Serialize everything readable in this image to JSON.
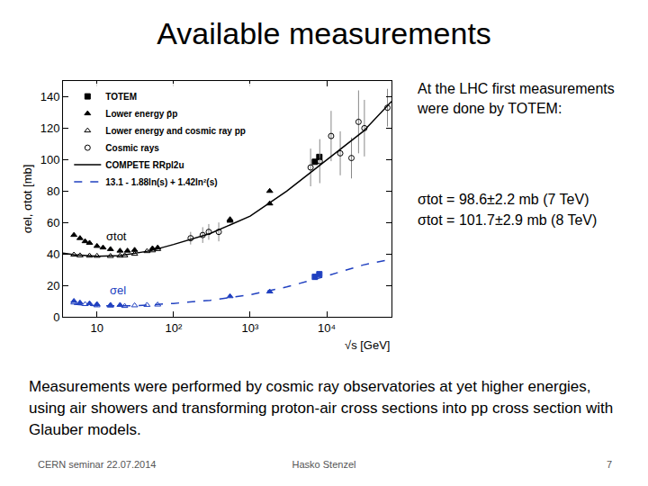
{
  "slide": {
    "title": "Available measurements",
    "side_text": "At the LHC first measurements were done by TOTEM:",
    "results": [
      "σtot = 98.6±2.2 mb (7 TeV)",
      "σtot = 101.7±2.9 mb (8 TeV)"
    ],
    "body": "Measurements were performed by cosmic ray observatories at yet higher energies, using air showers and transforming proton-air cross sections into pp cross section with Glauber models.",
    "footer": {
      "left": "CERN seminar 22.07.2014",
      "center": "Hasko Stenzel",
      "right": "7"
    }
  },
  "chart_data": {
    "type": "scatter",
    "xlabel": "√s [GeV]",
    "ylabel": "σel, σtot [mb]",
    "log": "x",
    "grid": false,
    "legend": "top-left",
    "xlim": [
      3.6,
      70000
    ],
    "xticks": [
      10,
      {
        "value": 100,
        "label": "10²"
      },
      {
        "value": 1000,
        "label": "10³"
      },
      {
        "value": 10000,
        "label": "10⁴"
      }
    ],
    "ylim": [
      0,
      150
    ],
    "yticks": [
      0,
      20,
      40,
      60,
      80,
      100,
      120,
      140
    ],
    "annotations": [
      {
        "text": "σtot",
        "x": 18,
        "y": 51,
        "color": "#000000"
      },
      {
        "text": "σel",
        "x": 19,
        "y": 17,
        "color": "#2040c0"
      }
    ],
    "series": [
      {
        "name": "TOTEM",
        "type": "scatter",
        "marker": "square",
        "color": "#000000",
        "x": [
          7000,
          8000
        ],
        "values": [
          98.6,
          101.7
        ],
        "el": {
          "color": "#2040c0",
          "x": [
            7000,
            8000
          ],
          "values": [
            25.4,
            27.1
          ]
        }
      },
      {
        "name": "Lower energy p̄p",
        "type": "scatter",
        "marker": "triangle",
        "color": "#000000",
        "x": [
          5,
          6,
          7,
          8,
          10,
          12,
          15,
          20,
          25,
          31,
          53,
          62,
          546,
          546,
          1800,
          1800
        ],
        "values": [
          52,
          50,
          48,
          47,
          45,
          44,
          43,
          42,
          42,
          42.5,
          43.5,
          44,
          62,
          61,
          72,
          80
        ],
        "el": {
          "color": "#2040c0",
          "x": [
            5,
            6,
            8,
            10,
            15,
            20,
            546,
            1800
          ],
          "values": [
            10,
            9,
            8.5,
            8,
            7.5,
            7.5,
            13,
            16
          ]
        }
      },
      {
        "name": "Lower energy and cosmic ray pp",
        "type": "scatter",
        "marker": "open-triangle",
        "color": "#000000",
        "x": [
          5,
          6,
          8,
          10,
          15,
          20,
          23,
          31,
          45,
          53,
          62
        ],
        "values": [
          39.5,
          39,
          38.8,
          38.7,
          38.6,
          38.8,
          39,
          40,
          41.7,
          42.2,
          43
        ],
        "el": {
          "color": "#2040c0",
          "x": [
            5,
            7,
            10,
            15,
            23,
            31,
            45,
            62
          ],
          "values": [
            9,
            8,
            7.2,
            7,
            6.8,
            7.2,
            7.5,
            7.7
          ]
        }
      },
      {
        "name": "Cosmic rays",
        "type": "scatter",
        "marker": "open-circle",
        "color": "#000000",
        "x": [
          167,
          240,
          288,
          389,
          6150,
          8100,
          11400,
          15000,
          21000,
          26000,
          31000,
          62000
        ],
        "values": [
          50,
          52,
          54,
          54,
          95,
          99,
          115,
          104,
          101,
          124,
          120,
          133
        ],
        "errors": [
          4,
          5,
          5,
          6,
          12,
          14,
          16,
          14,
          13,
          20,
          18,
          12
        ]
      },
      {
        "name": "COMPETE RRpl2u",
        "type": "line",
        "line_style": "solid",
        "color": "#000000",
        "x": [
          3.6,
          5,
          10,
          20,
          50,
          100,
          300,
          1000,
          3000,
          10000,
          30000,
          70000
        ],
        "values": [
          40.5,
          39.5,
          38.5,
          39,
          42,
          46,
          53,
          64,
          80,
          100,
          118,
          137
        ]
      },
      {
        "name": "13.1 - 1.88ln(s) + 1.42ln²(s)",
        "type": "line",
        "line_style": "dashed",
        "color": "#2040c0",
        "x": [
          5,
          10,
          30,
          100,
          300,
          1000,
          3000,
          10000,
          30000,
          70000
        ],
        "values": [
          8,
          7,
          7,
          8.5,
          10.5,
          14,
          19,
          26,
          33,
          36.6
        ]
      }
    ]
  }
}
